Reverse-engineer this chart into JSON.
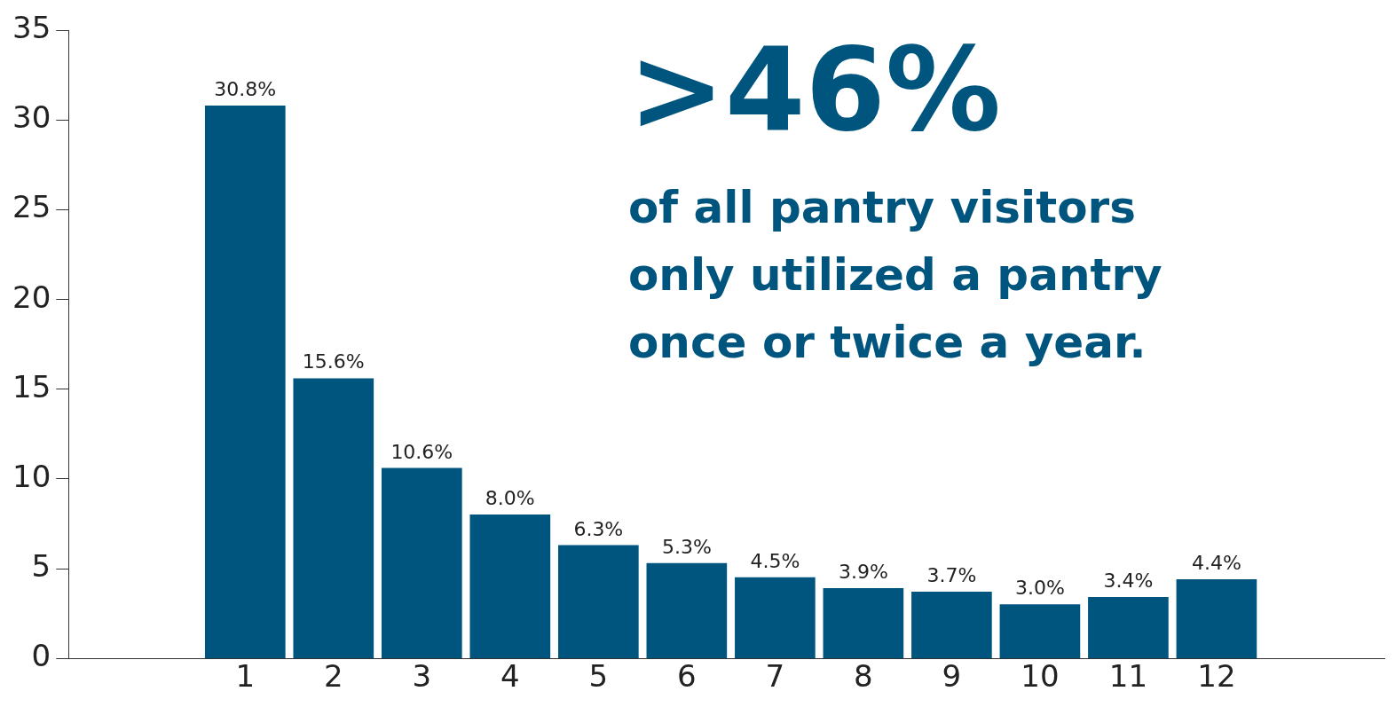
{
  "chart_data": {
    "type": "bar",
    "x": [
      1,
      2,
      3,
      4,
      5,
      6,
      7,
      8,
      9,
      10,
      11,
      12
    ],
    "values": [
      30.8,
      15.6,
      10.6,
      8.0,
      6.3,
      5.3,
      4.5,
      3.9,
      3.7,
      3.0,
      3.4,
      4.4
    ],
    "value_labels": [
      "30.8%",
      "15.6%",
      "10.6%",
      "8.0%",
      "6.3%",
      "5.3%",
      "4.5%",
      "3.9%",
      "3.7%",
      "3.0%",
      "3.4%",
      "4.4%"
    ],
    "color": "#00557f",
    "xlim": [
      -1,
      13.9
    ],
    "xticks": [
      1,
      2,
      3,
      4,
      5,
      6,
      7,
      8,
      9,
      10,
      11,
      12
    ],
    "ylim": [
      0,
      35
    ],
    "yticks": [
      0,
      5,
      10,
      15,
      20,
      25,
      30,
      35
    ],
    "grid": false,
    "legend": false,
    "annotations": [
      ">46%",
      "of all pantry visitors\nonly utilized a pantry\nonce or twice a year."
    ]
  }
}
